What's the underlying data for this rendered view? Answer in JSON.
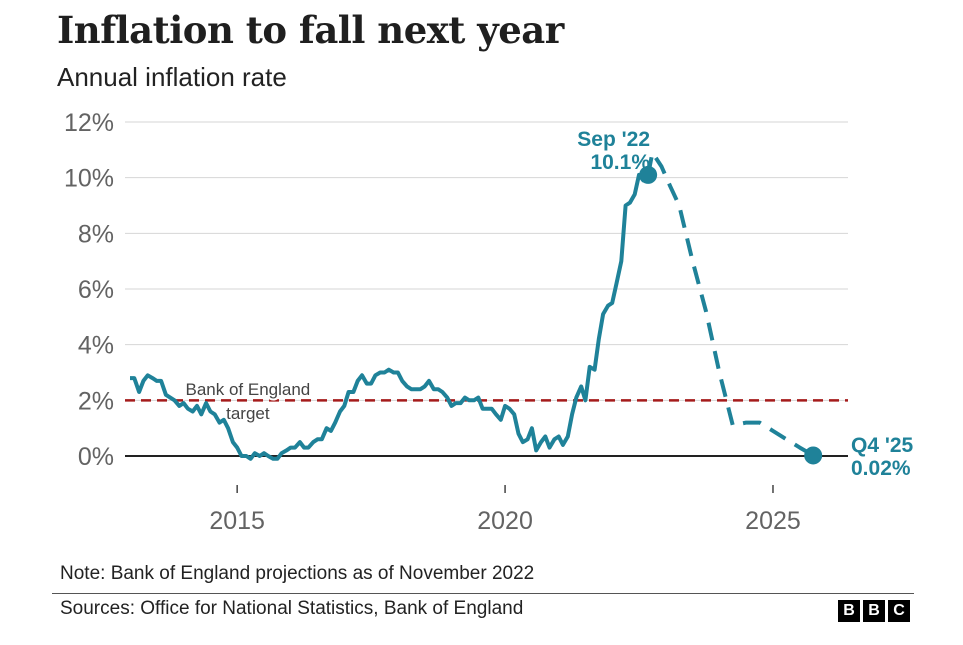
{
  "header": {
    "title": "Inflation to fall next year",
    "subtitle": "Annual inflation rate"
  },
  "footer": {
    "note": "Note: Bank of England projections as of November 2022",
    "sources": "Sources: Office for National Statistics, Bank of England",
    "logo_letters": [
      "B",
      "B",
      "C"
    ]
  },
  "chart_data": {
    "type": "line",
    "title": "Inflation to fall next year",
    "subtitle": "Annual inflation rate",
    "xlabel": "",
    "ylabel": "",
    "xlim": [
      2013.0,
      2026.4
    ],
    "ylim": [
      -1,
      12
    ],
    "x_ticks": [
      2015,
      2020,
      2025
    ],
    "x_tick_labels": [
      "2015",
      "2020",
      "2025"
    ],
    "y_ticks": [
      0,
      2,
      4,
      6,
      8,
      10,
      12
    ],
    "y_tick_labels": [
      "0%",
      "2%",
      "4%",
      "6%",
      "8%",
      "10%",
      "12%"
    ],
    "grid": true,
    "colors": {
      "series": "#1f8299",
      "target": "#a51b1b",
      "grid": "#d6d6d6",
      "tick_text": "#636363",
      "baseline": "#222222"
    },
    "series": [
      {
        "style": "solid",
        "points": [
          [
            2013.0,
            2.8
          ],
          [
            2013.08,
            2.8
          ],
          [
            2013.17,
            2.3
          ],
          [
            2013.25,
            2.7
          ],
          [
            2013.33,
            2.9
          ],
          [
            2013.42,
            2.8
          ],
          [
            2013.5,
            2.7
          ],
          [
            2013.58,
            2.7
          ],
          [
            2013.67,
            2.2
          ],
          [
            2013.75,
            2.1
          ],
          [
            2013.83,
            2.0
          ],
          [
            2013.92,
            1.8
          ],
          [
            2014.0,
            1.9
          ],
          [
            2014.08,
            1.7
          ],
          [
            2014.17,
            1.6
          ],
          [
            2014.25,
            1.8
          ],
          [
            2014.33,
            1.5
          ],
          [
            2014.42,
            1.9
          ],
          [
            2014.5,
            1.6
          ],
          [
            2014.58,
            1.5
          ],
          [
            2014.67,
            1.2
          ],
          [
            2014.75,
            1.3
          ],
          [
            2014.83,
            1.0
          ],
          [
            2014.92,
            0.5
          ],
          [
            2015.0,
            0.3
          ],
          [
            2015.08,
            0.0
          ],
          [
            2015.17,
            0.0
          ],
          [
            2015.25,
            -0.1
          ],
          [
            2015.33,
            0.1
          ],
          [
            2015.42,
            0.0
          ],
          [
            2015.5,
            0.1
          ],
          [
            2015.58,
            0.0
          ],
          [
            2015.67,
            -0.1
          ],
          [
            2015.75,
            -0.1
          ],
          [
            2015.83,
            0.1
          ],
          [
            2015.92,
            0.2
          ],
          [
            2016.0,
            0.3
          ],
          [
            2016.08,
            0.3
          ],
          [
            2016.17,
            0.5
          ],
          [
            2016.25,
            0.3
          ],
          [
            2016.33,
            0.3
          ],
          [
            2016.42,
            0.5
          ],
          [
            2016.5,
            0.6
          ],
          [
            2016.58,
            0.6
          ],
          [
            2016.67,
            1.0
          ],
          [
            2016.75,
            0.9
          ],
          [
            2016.83,
            1.2
          ],
          [
            2016.92,
            1.6
          ],
          [
            2017.0,
            1.8
          ],
          [
            2017.08,
            2.3
          ],
          [
            2017.17,
            2.3
          ],
          [
            2017.25,
            2.7
          ],
          [
            2017.33,
            2.9
          ],
          [
            2017.42,
            2.6
          ],
          [
            2017.5,
            2.6
          ],
          [
            2017.58,
            2.9
          ],
          [
            2017.67,
            3.0
          ],
          [
            2017.75,
            3.0
          ],
          [
            2017.83,
            3.1
          ],
          [
            2017.92,
            3.0
          ],
          [
            2018.0,
            3.0
          ],
          [
            2018.08,
            2.7
          ],
          [
            2018.17,
            2.5
          ],
          [
            2018.25,
            2.4
          ],
          [
            2018.33,
            2.4
          ],
          [
            2018.42,
            2.4
          ],
          [
            2018.5,
            2.5
          ],
          [
            2018.58,
            2.7
          ],
          [
            2018.67,
            2.4
          ],
          [
            2018.75,
            2.4
          ],
          [
            2018.83,
            2.3
          ],
          [
            2018.92,
            2.1
          ],
          [
            2019.0,
            1.8
          ],
          [
            2019.08,
            1.9
          ],
          [
            2019.17,
            1.9
          ],
          [
            2019.25,
            2.1
          ],
          [
            2019.33,
            2.0
          ],
          [
            2019.42,
            2.0
          ],
          [
            2019.5,
            2.1
          ],
          [
            2019.58,
            1.7
          ],
          [
            2019.67,
            1.7
          ],
          [
            2019.75,
            1.7
          ],
          [
            2019.83,
            1.5
          ],
          [
            2019.92,
            1.3
          ],
          [
            2020.0,
            1.8
          ],
          [
            2020.08,
            1.7
          ],
          [
            2020.17,
            1.5
          ],
          [
            2020.25,
            0.8
          ],
          [
            2020.33,
            0.5
          ],
          [
            2020.42,
            0.6
          ],
          [
            2020.5,
            1.0
          ],
          [
            2020.58,
            0.2
          ],
          [
            2020.67,
            0.5
          ],
          [
            2020.75,
            0.7
          ],
          [
            2020.83,
            0.3
          ],
          [
            2020.92,
            0.6
          ],
          [
            2021.0,
            0.7
          ],
          [
            2021.08,
            0.4
          ],
          [
            2021.17,
            0.7
          ],
          [
            2021.25,
            1.5
          ],
          [
            2021.33,
            2.1
          ],
          [
            2021.42,
            2.5
          ],
          [
            2021.5,
            2.0
          ],
          [
            2021.58,
            3.2
          ],
          [
            2021.67,
            3.1
          ],
          [
            2021.75,
            4.2
          ],
          [
            2021.83,
            5.1
          ],
          [
            2021.92,
            5.4
          ],
          [
            2022.0,
            5.5
          ],
          [
            2022.08,
            6.2
          ],
          [
            2022.17,
            7.0
          ],
          [
            2022.25,
            9.0
          ],
          [
            2022.33,
            9.1
          ],
          [
            2022.42,
            9.4
          ],
          [
            2022.5,
            10.1
          ],
          [
            2022.58,
            9.9
          ],
          [
            2022.67,
            10.1
          ]
        ]
      },
      {
        "style": "dashed",
        "points": [
          [
            2022.67,
            10.1
          ],
          [
            2022.75,
            10.9
          ],
          [
            2022.92,
            10.4
          ],
          [
            2023.08,
            9.7
          ],
          [
            2023.25,
            9.0
          ],
          [
            2023.5,
            7.0
          ],
          [
            2023.75,
            5.2
          ],
          [
            2024.0,
            3.0
          ],
          [
            2024.25,
            1.1
          ],
          [
            2024.5,
            1.2
          ],
          [
            2024.75,
            1.2
          ],
          [
            2025.0,
            0.9
          ],
          [
            2025.25,
            0.6
          ],
          [
            2025.5,
            0.3
          ],
          [
            2025.75,
            0.02
          ]
        ]
      }
    ],
    "target_line": {
      "y": 2,
      "label_lines": [
        "Bank of England",
        "target"
      ]
    },
    "annotations": [
      {
        "x": 2022.67,
        "y": 10.1,
        "label_lines": [
          "Sep '22",
          "10.1%"
        ]
      },
      {
        "x": 2025.75,
        "y": 0.02,
        "label_lines": [
          "Q4 '25",
          "0.02%"
        ]
      }
    ]
  }
}
